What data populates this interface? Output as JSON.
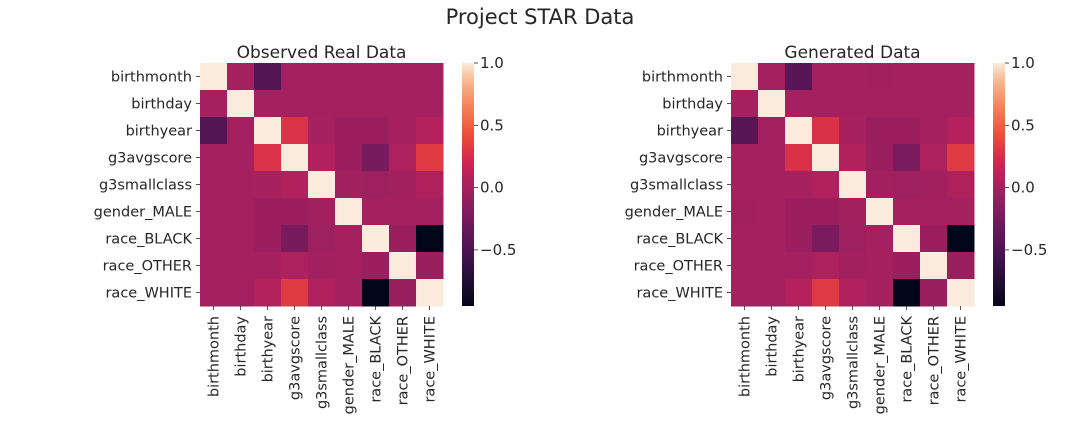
{
  "chart_data": {
    "type": "heatmap",
    "suptitle": "Project STAR Data",
    "labels": [
      "birthmonth",
      "birthday",
      "birthyear",
      "g3avgscore",
      "g3smallclass",
      "gender_MALE",
      "race_BLACK",
      "race_OTHER",
      "race_WHITE"
    ],
    "colorbar": {
      "vmin": -0.95,
      "vmax": 1.0,
      "ticks": [
        1.0,
        0.5,
        0.0,
        -0.5
      ],
      "tick_labels": [
        "1.0",
        "0.5",
        "0.0",
        "−0.5"
      ]
    },
    "panels": [
      {
        "title": "Observed Real Data",
        "matrix": [
          [
            1.0,
            0.0,
            -0.45,
            0.0,
            0.0,
            0.0,
            0.0,
            0.0,
            0.0
          ],
          [
            0.0,
            1.0,
            0.0,
            0.0,
            0.0,
            0.0,
            0.0,
            0.0,
            0.0
          ],
          [
            -0.45,
            0.0,
            1.0,
            0.28,
            0.02,
            -0.05,
            -0.05,
            0.0,
            0.08
          ],
          [
            0.0,
            0.0,
            0.28,
            1.0,
            0.06,
            -0.05,
            -0.25,
            0.04,
            0.32
          ],
          [
            0.0,
            0.0,
            0.02,
            0.06,
            1.0,
            -0.01,
            -0.04,
            -0.01,
            0.05
          ],
          [
            0.0,
            0.0,
            -0.05,
            -0.05,
            -0.01,
            1.0,
            0.0,
            0.0,
            0.0
          ],
          [
            0.0,
            0.0,
            -0.05,
            -0.25,
            -0.04,
            0.0,
            1.0,
            -0.05,
            -0.95
          ],
          [
            0.0,
            0.0,
            0.0,
            0.04,
            -0.01,
            0.0,
            -0.05,
            1.0,
            -0.06
          ],
          [
            0.0,
            0.0,
            0.08,
            0.32,
            0.05,
            0.0,
            -0.95,
            -0.06,
            1.0
          ]
        ]
      },
      {
        "title": "Generated Data",
        "matrix": [
          [
            1.0,
            0.0,
            -0.42,
            0.0,
            0.0,
            -0.01,
            0.0,
            0.0,
            0.0
          ],
          [
            0.0,
            1.0,
            0.0,
            0.0,
            0.0,
            0.0,
            0.0,
            0.0,
            0.0
          ],
          [
            -0.42,
            0.0,
            1.0,
            0.27,
            0.02,
            -0.05,
            -0.05,
            0.0,
            0.08
          ],
          [
            0.0,
            0.0,
            0.27,
            1.0,
            0.06,
            -0.05,
            -0.24,
            0.04,
            0.31
          ],
          [
            0.0,
            0.0,
            0.02,
            0.06,
            1.0,
            -0.01,
            -0.04,
            -0.01,
            0.05
          ],
          [
            -0.01,
            0.0,
            -0.05,
            -0.05,
            -0.01,
            1.0,
            0.0,
            0.0,
            0.0
          ],
          [
            0.0,
            0.0,
            -0.05,
            -0.24,
            -0.04,
            0.0,
            1.0,
            -0.05,
            -0.95
          ],
          [
            0.0,
            0.0,
            0.0,
            0.04,
            -0.01,
            0.0,
            -0.05,
            1.0,
            -0.06
          ],
          [
            0.0,
            0.0,
            0.08,
            0.31,
            0.05,
            0.0,
            -0.95,
            -0.06,
            1.0
          ]
        ]
      }
    ]
  }
}
